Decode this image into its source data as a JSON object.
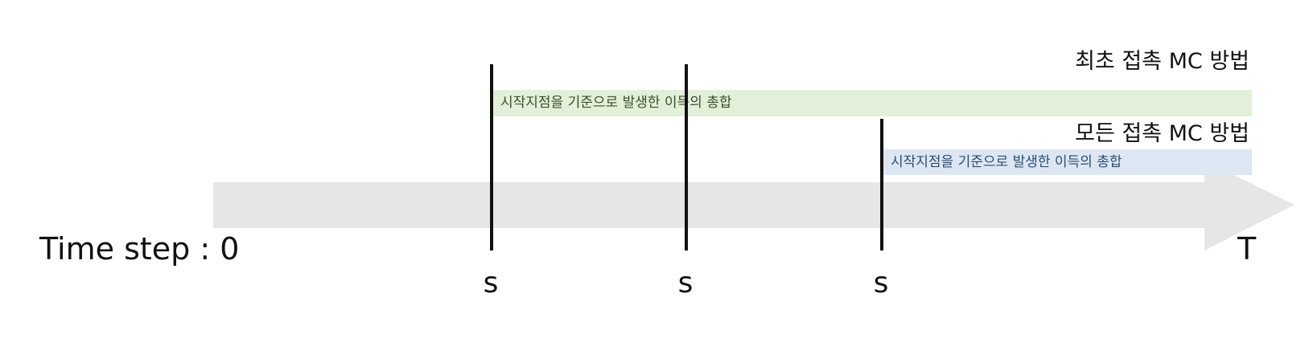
{
  "diagram": {
    "first_visit": {
      "title": "최초 접촉 MC 방법",
      "bar_text": "시작지점을 기준으로 발생한 이득의 총합",
      "bar_color": "#e2efd9"
    },
    "every_visit": {
      "title": "모든 접촉 MC 방법",
      "bar_text": "시작지점을 기준으로 발생한 이득의 총합",
      "bar_color": "#dce7f3"
    },
    "timeline": {
      "start_label": "Time step : 0",
      "end_label": "T",
      "arrow_color": "#e6e6e6",
      "state_labels": [
        "s",
        "s",
        "s"
      ]
    }
  }
}
